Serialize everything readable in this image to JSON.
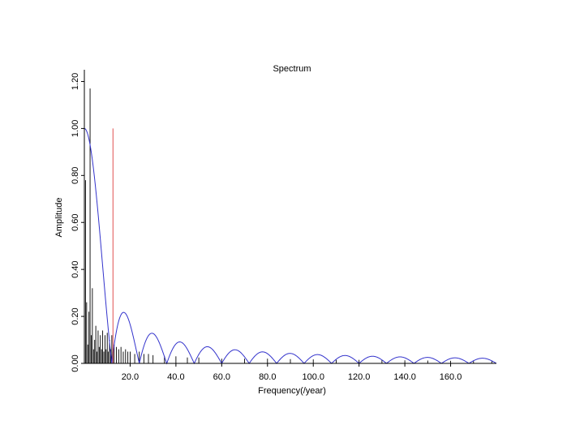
{
  "chart_data": {
    "type": "line",
    "title": "Spectrum",
    "xlabel": "Frequency(/year)",
    "ylabel": "Amplitude",
    "xlim": [
      0,
      180
    ],
    "ylim": [
      0,
      1.25
    ],
    "x_ticks": [
      20,
      40,
      60,
      80,
      100,
      120,
      140,
      160
    ],
    "x_tick_labels": [
      "20.0",
      "40.0",
      "60.0",
      "80.0",
      "100.0",
      "120.0",
      "140.0",
      "160.0"
    ],
    "y_ticks": [
      0,
      0.2,
      0.4,
      0.6,
      0.8,
      1.0,
      1.2
    ],
    "y_tick_labels": [
      "0.00",
      "0.20",
      "0.40",
      "0.60",
      "0.80",
      "1.00",
      "1.20"
    ],
    "grid": false,
    "legend": "none",
    "colors": {
      "spectrum": "#000000",
      "window": "#3333cc",
      "marker": "#e05050"
    },
    "series": [
      {
        "style": "spikes",
        "color": "#000000",
        "x": [
          0.5,
          1,
          1.5,
          2,
          2.5,
          3,
          3.5,
          4,
          4.5,
          5,
          5.5,
          6,
          6.5,
          7,
          7.5,
          8,
          8.5,
          9,
          9.5,
          10,
          10.5,
          11,
          11.5,
          12,
          12.5,
          13,
          14,
          15,
          16,
          17,
          18,
          19,
          20,
          22,
          24,
          26,
          28,
          30,
          35,
          40,
          45,
          50,
          60,
          70,
          80,
          90,
          100,
          110,
          120,
          130,
          140,
          150,
          160,
          170,
          178
        ],
        "y": [
          0.78,
          0.26,
          0.08,
          0.22,
          1.17,
          0.12,
          0.32,
          0.06,
          0.1,
          0.16,
          0.05,
          0.14,
          0.07,
          0.12,
          0.06,
          0.14,
          0.05,
          0.12,
          0.06,
          0.13,
          0.05,
          0.1,
          0.06,
          0.12,
          0.05,
          0.08,
          0.07,
          0.06,
          0.07,
          0.05,
          0.06,
          0.05,
          0.05,
          0.04,
          0.05,
          0.04,
          0.04,
          0.035,
          0.03,
          0.03,
          0.025,
          0.025,
          0.02,
          0.02,
          0.02,
          0.018,
          0.017,
          0.015,
          0.015,
          0.014,
          0.013,
          0.012,
          0.011,
          0.01,
          0.01
        ]
      },
      {
        "style": "line",
        "color": "#3333cc",
        "function": "abs_sinc",
        "peak": 1.0,
        "first_zero": 12
      },
      {
        "style": "vline",
        "color": "#e05050",
        "x": 12.5,
        "y": [
          0,
          1.0
        ]
      }
    ]
  }
}
